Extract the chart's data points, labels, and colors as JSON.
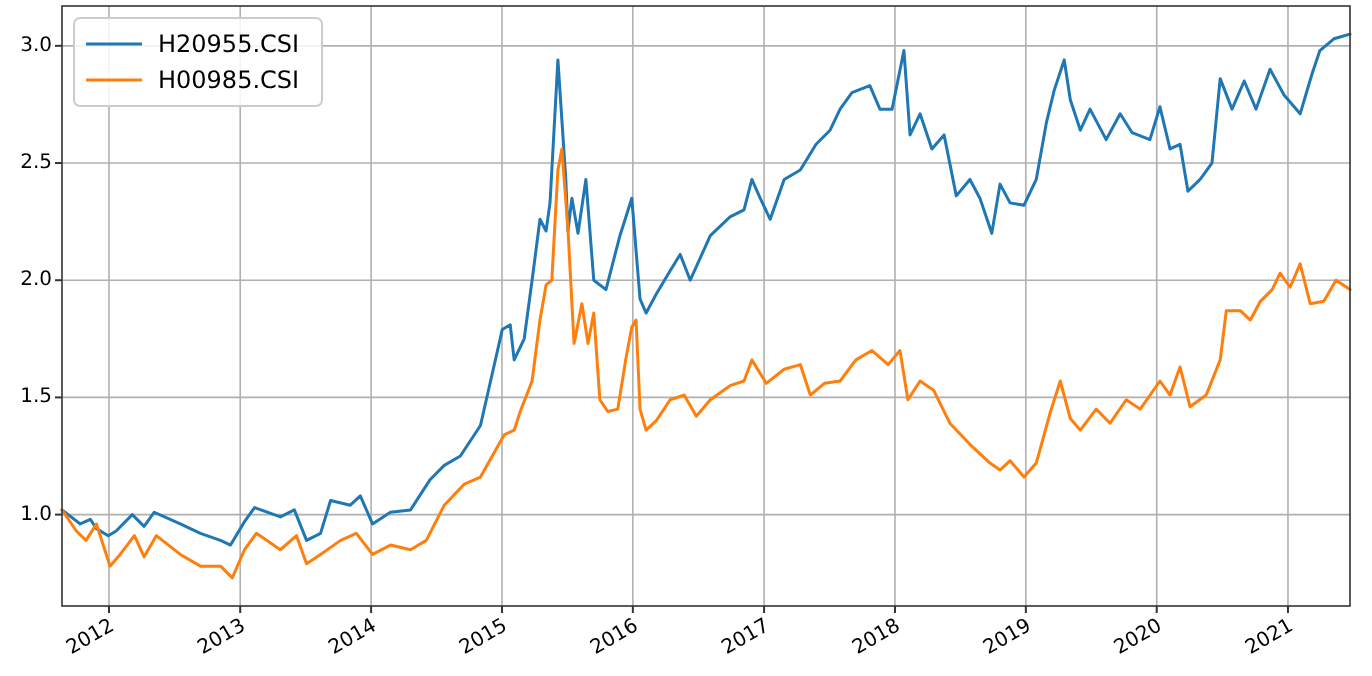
{
  "chart_data": {
    "type": "line",
    "xlim": [
      "2011-08-23",
      "2021-06-23"
    ],
    "ylim": [
      0.61,
      3.17
    ],
    "xticks": [
      "2012",
      "2013",
      "2014",
      "2015",
      "2016",
      "2017",
      "2018",
      "2019",
      "2020",
      "2021"
    ],
    "yticks": [
      {
        "value": 1,
        "label": "1.0"
      },
      {
        "value": 1.5,
        "label": "1.5"
      },
      {
        "value": 2,
        "label": "2.0"
      },
      {
        "value": 2.5,
        "label": "2.5"
      },
      {
        "value": 3,
        "label": "3.0"
      }
    ],
    "grid": true,
    "legend": "top left",
    "line_style": "solid",
    "marker": "none",
    "series": [
      {
        "name": "H20955.CSI",
        "color": "#1f77b4",
        "x": [
          "2011-08-23",
          "2011-10-13",
          "2011-11-10",
          "2011-11-27",
          "2011-12-30",
          "2012-01-21",
          "2012-03-06",
          "2012-04-08",
          "2012-05-06",
          "2012-07-18",
          "2012-09-12",
          "2012-11-07",
          "2012-12-05",
          "2013-01-13",
          "2013-02-10",
          "2013-04-23",
          "2013-06-01",
          "2013-07-05",
          "2013-08-13",
          "2013-09-10",
          "2013-11-04",
          "2013-12-02",
          "2014-01-05",
          "2014-02-24",
          "2014-04-21",
          "2014-06-15",
          "2014-07-24",
          "2014-09-07",
          "2014-11-02",
          "2015-01-02",
          "2015-01-24",
          "2015-02-04",
          "2015-03-04",
          "2015-03-26",
          "2015-04-17",
          "2015-05-04",
          "2015-05-15",
          "2015-06-06",
          "2015-06-28",
          "2015-07-04",
          "2015-07-15",
          "2015-08-01",
          "2015-08-23",
          "2015-09-14",
          "2015-10-18",
          "2015-11-26",
          "2015-12-29",
          "2016-01-21",
          "2016-02-07",
          "2016-03-06",
          "2016-04-14",
          "2016-05-12",
          "2016-06-09",
          "2016-08-04",
          "2016-09-28",
          "2016-11-06",
          "2016-11-28",
          "2016-12-21",
          "2017-01-18",
          "2017-02-26",
          "2017-04-12",
          "2017-05-26",
          "2017-07-04",
          "2017-08-01",
          "2017-09-03",
          "2017-10-23",
          "2017-11-20",
          "2017-12-24",
          "2018-01-26",
          "2018-02-12",
          "2018-03-12",
          "2018-04-14",
          "2018-05-18",
          "2018-06-21",
          "2018-07-29",
          "2018-08-26",
          "2018-09-28",
          "2018-10-21",
          "2018-11-18",
          "2018-12-27",
          "2019-01-30",
          "2019-02-27",
          "2019-03-21",
          "2019-04-18",
          "2019-05-05",
          "2019-06-02",
          "2019-06-29",
          "2019-08-13",
          "2019-09-21",
          "2019-10-24",
          "2019-12-13",
          "2020-01-10",
          "2020-02-07",
          "2020-03-06",
          "2020-03-28",
          "2020-05-01",
          "2020-06-03",
          "2020-06-26",
          "2020-07-29",
          "2020-09-01",
          "2020-10-04",
          "2020-11-12",
          "2020-12-21",
          "2021-02-04",
          "2021-03-09",
          "2021-03-31",
          "2021-05-09",
          "2021-06-23"
        ],
        "values": [
          1.02,
          0.96,
          0.98,
          0.94,
          0.91,
          0.93,
          1.0,
          0.95,
          1.01,
          0.96,
          0.92,
          0.89,
          0.87,
          0.97,
          1.03,
          0.99,
          1.02,
          0.89,
          0.92,
          1.06,
          1.04,
          1.08,
          0.96,
          1.01,
          1.02,
          1.15,
          1.21,
          1.25,
          1.38,
          1.79,
          1.81,
          1.66,
          1.75,
          2.0,
          2.26,
          2.21,
          2.33,
          2.94,
          2.43,
          2.21,
          2.35,
          2.2,
          2.43,
          2.0,
          1.96,
          2.19,
          2.35,
          1.92,
          1.86,
          1.94,
          2.04,
          2.11,
          2.0,
          2.19,
          2.27,
          2.3,
          2.43,
          2.35,
          2.26,
          2.43,
          2.47,
          2.58,
          2.64,
          2.73,
          2.8,
          2.83,
          2.73,
          2.73,
          2.98,
          2.62,
          2.71,
          2.56,
          2.62,
          2.36,
          2.43,
          2.35,
          2.2,
          2.41,
          2.33,
          2.32,
          2.43,
          2.67,
          2.81,
          2.94,
          2.77,
          2.64,
          2.73,
          2.6,
          2.71,
          2.63,
          2.6,
          2.74,
          2.56,
          2.58,
          2.38,
          2.43,
          2.5,
          2.86,
          2.73,
          2.85,
          2.73,
          2.9,
          2.79,
          2.71,
          2.88,
          2.98,
          3.03,
          3.05
        ]
      },
      {
        "name": "H00985.CSI",
        "color": "#ff7f0e",
        "x": [
          "2011-08-23",
          "2011-10-02",
          "2011-10-29",
          "2011-11-27",
          "2012-01-04",
          "2012-02-01",
          "2012-03-12",
          "2012-04-08",
          "2012-05-12",
          "2012-07-18",
          "2012-09-12",
          "2012-11-07",
          "2012-12-10",
          "2013-01-13",
          "2013-02-15",
          "2013-04-23",
          "2013-06-07",
          "2013-07-05",
          "2013-08-13",
          "2013-10-08",
          "2013-11-21",
          "2014-01-05",
          "2014-02-24",
          "2014-04-21",
          "2014-06-04",
          "2014-07-24",
          "2014-09-18",
          "2014-11-02",
          "2015-01-07",
          "2015-02-04",
          "2015-02-21",
          "2015-03-26",
          "2015-04-17",
          "2015-05-04",
          "2015-05-20",
          "2015-06-06",
          "2015-06-17",
          "2015-07-04",
          "2015-07-21",
          "2015-08-12",
          "2015-08-29",
          "2015-09-14",
          "2015-10-01",
          "2015-10-23",
          "2015-11-20",
          "2015-12-12",
          "2015-12-29",
          "2016-01-10",
          "2016-01-21",
          "2016-02-07",
          "2016-03-06",
          "2016-04-14",
          "2016-05-23",
          "2016-06-26",
          "2016-08-04",
          "2016-09-28",
          "2016-11-06",
          "2016-11-28",
          "2017-01-07",
          "2017-02-26",
          "2017-04-12",
          "2017-05-10",
          "2017-06-18",
          "2017-08-01",
          "2017-09-14",
          "2017-10-29",
          "2017-12-13",
          "2018-01-15",
          "2018-02-06",
          "2018-03-12",
          "2018-04-19",
          "2018-06-03",
          "2018-07-29",
          "2018-09-23",
          "2018-10-21",
          "2018-11-18",
          "2018-12-27",
          "2019-01-30",
          "2019-03-09",
          "2019-04-07",
          "2019-05-05",
          "2019-06-02",
          "2019-07-16",
          "2019-08-24",
          "2019-10-08",
          "2019-11-16",
          "2020-01-10",
          "2020-02-07",
          "2020-03-06",
          "2020-04-03",
          "2020-05-18",
          "2020-06-26",
          "2020-07-13",
          "2020-08-21",
          "2020-09-18",
          "2020-10-16",
          "2020-11-18",
          "2020-12-10",
          "2021-01-07",
          "2021-02-04",
          "2021-03-04",
          "2021-04-11",
          "2021-05-15",
          "2021-06-23"
        ],
        "values": [
          1.02,
          0.93,
          0.89,
          0.96,
          0.78,
          0.83,
          0.91,
          0.82,
          0.91,
          0.83,
          0.78,
          0.78,
          0.73,
          0.85,
          0.92,
          0.85,
          0.91,
          0.79,
          0.83,
          0.89,
          0.92,
          0.83,
          0.87,
          0.85,
          0.89,
          1.04,
          1.13,
          1.16,
          1.34,
          1.36,
          1.44,
          1.57,
          1.83,
          1.98,
          2.0,
          2.47,
          2.56,
          2.22,
          1.73,
          1.9,
          1.73,
          1.86,
          1.49,
          1.44,
          1.45,
          1.66,
          1.8,
          1.83,
          1.45,
          1.36,
          1.4,
          1.49,
          1.51,
          1.42,
          1.49,
          1.55,
          1.57,
          1.66,
          1.56,
          1.62,
          1.64,
          1.51,
          1.56,
          1.57,
          1.66,
          1.7,
          1.64,
          1.7,
          1.49,
          1.57,
          1.53,
          1.39,
          1.3,
          1.22,
          1.19,
          1.23,
          1.16,
          1.22,
          1.43,
          1.57,
          1.41,
          1.36,
          1.45,
          1.39,
          1.49,
          1.45,
          1.57,
          1.51,
          1.63,
          1.46,
          1.51,
          1.66,
          1.87,
          1.87,
          1.83,
          1.91,
          1.96,
          2.03,
          1.97,
          2.07,
          1.9,
          1.91,
          2.0,
          1.96
        ]
      }
    ]
  }
}
